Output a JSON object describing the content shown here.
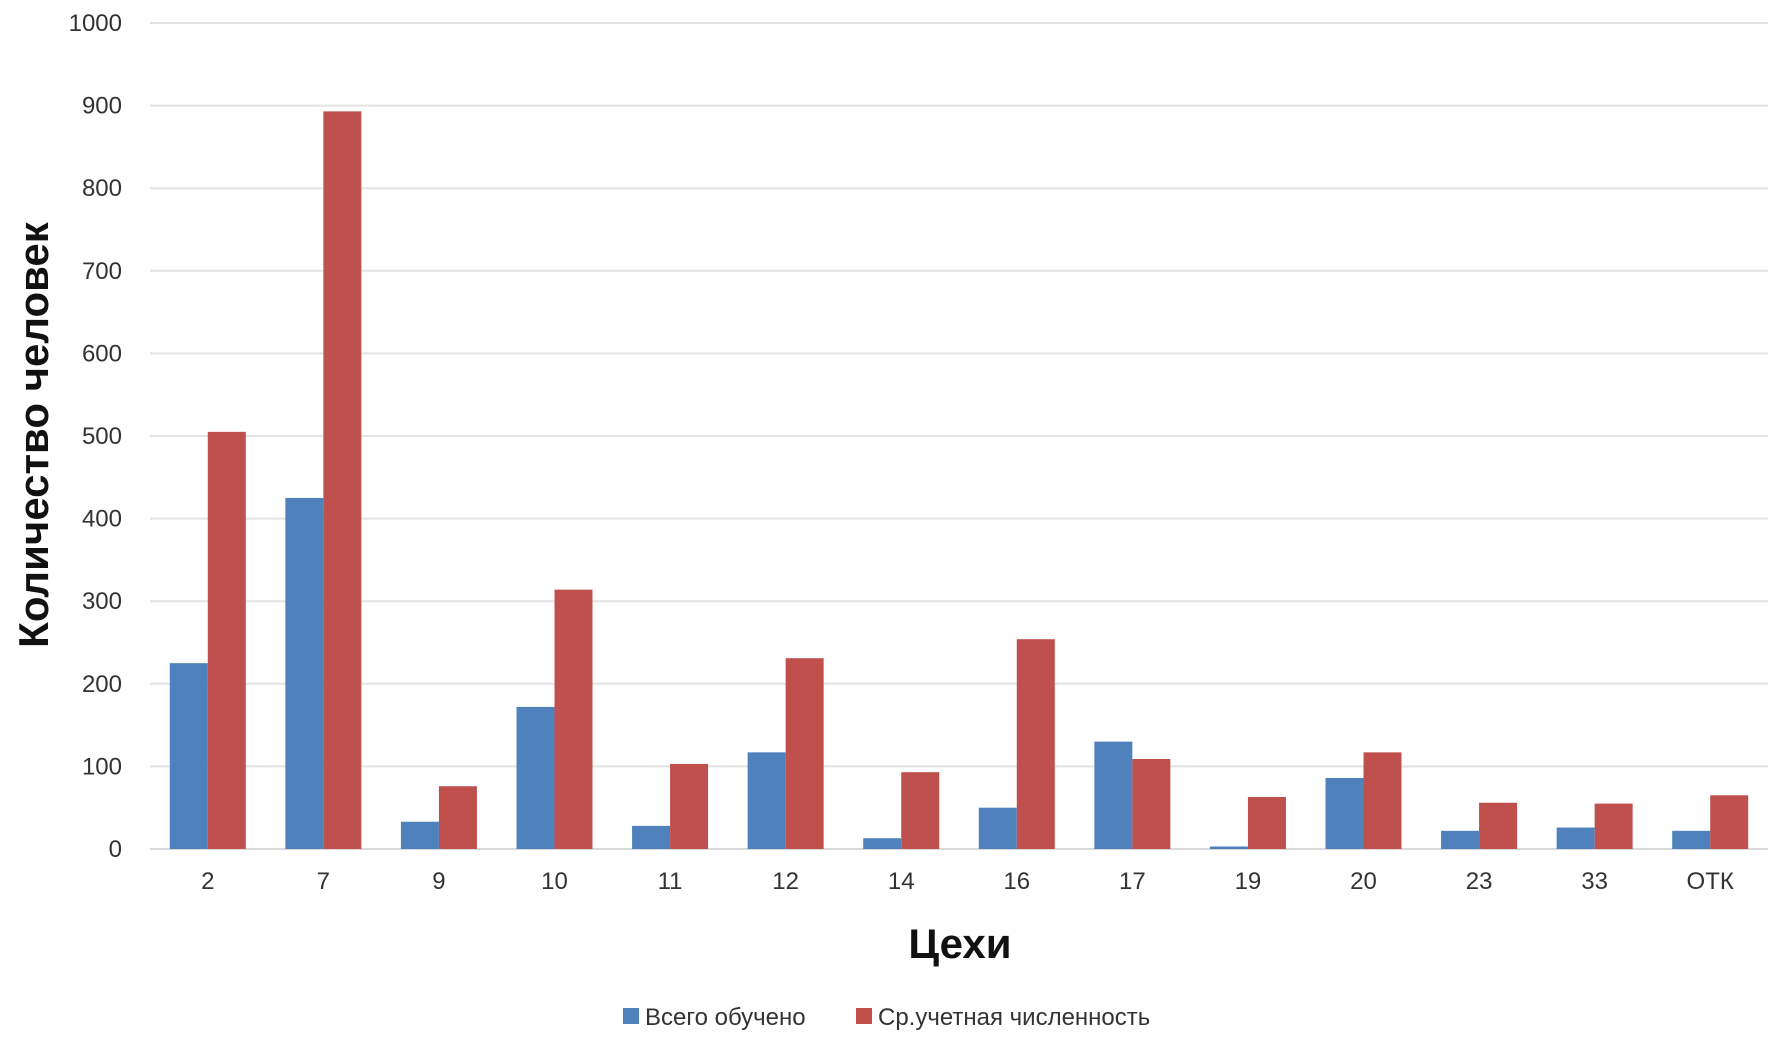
{
  "chart_data": {
    "type": "bar",
    "title": "",
    "xlabel": "Цехи",
    "ylabel": "Количество человек",
    "ylim": [
      0,
      1000
    ],
    "yticks": [
      0,
      100,
      200,
      300,
      400,
      500,
      600,
      700,
      800,
      900,
      1000
    ],
    "grid": true,
    "legend_position": "bottom",
    "categories": [
      "2",
      "7",
      "9",
      "10",
      "11",
      "12",
      "14",
      "16",
      "17",
      "19",
      "20",
      "23",
      "33",
      "ОТК"
    ],
    "series": [
      {
        "name": "Всего обучено",
        "color": "#4f81bd",
        "values": [
          225,
          425,
          33,
          172,
          28,
          117,
          13,
          50,
          130,
          3,
          86,
          22,
          26,
          22
        ]
      },
      {
        "name": "Ср.учетная численность",
        "color": "#c0504d",
        "values": [
          505,
          893,
          76,
          314,
          103,
          231,
          93,
          254,
          109,
          63,
          117,
          56,
          55,
          65
        ]
      }
    ]
  }
}
